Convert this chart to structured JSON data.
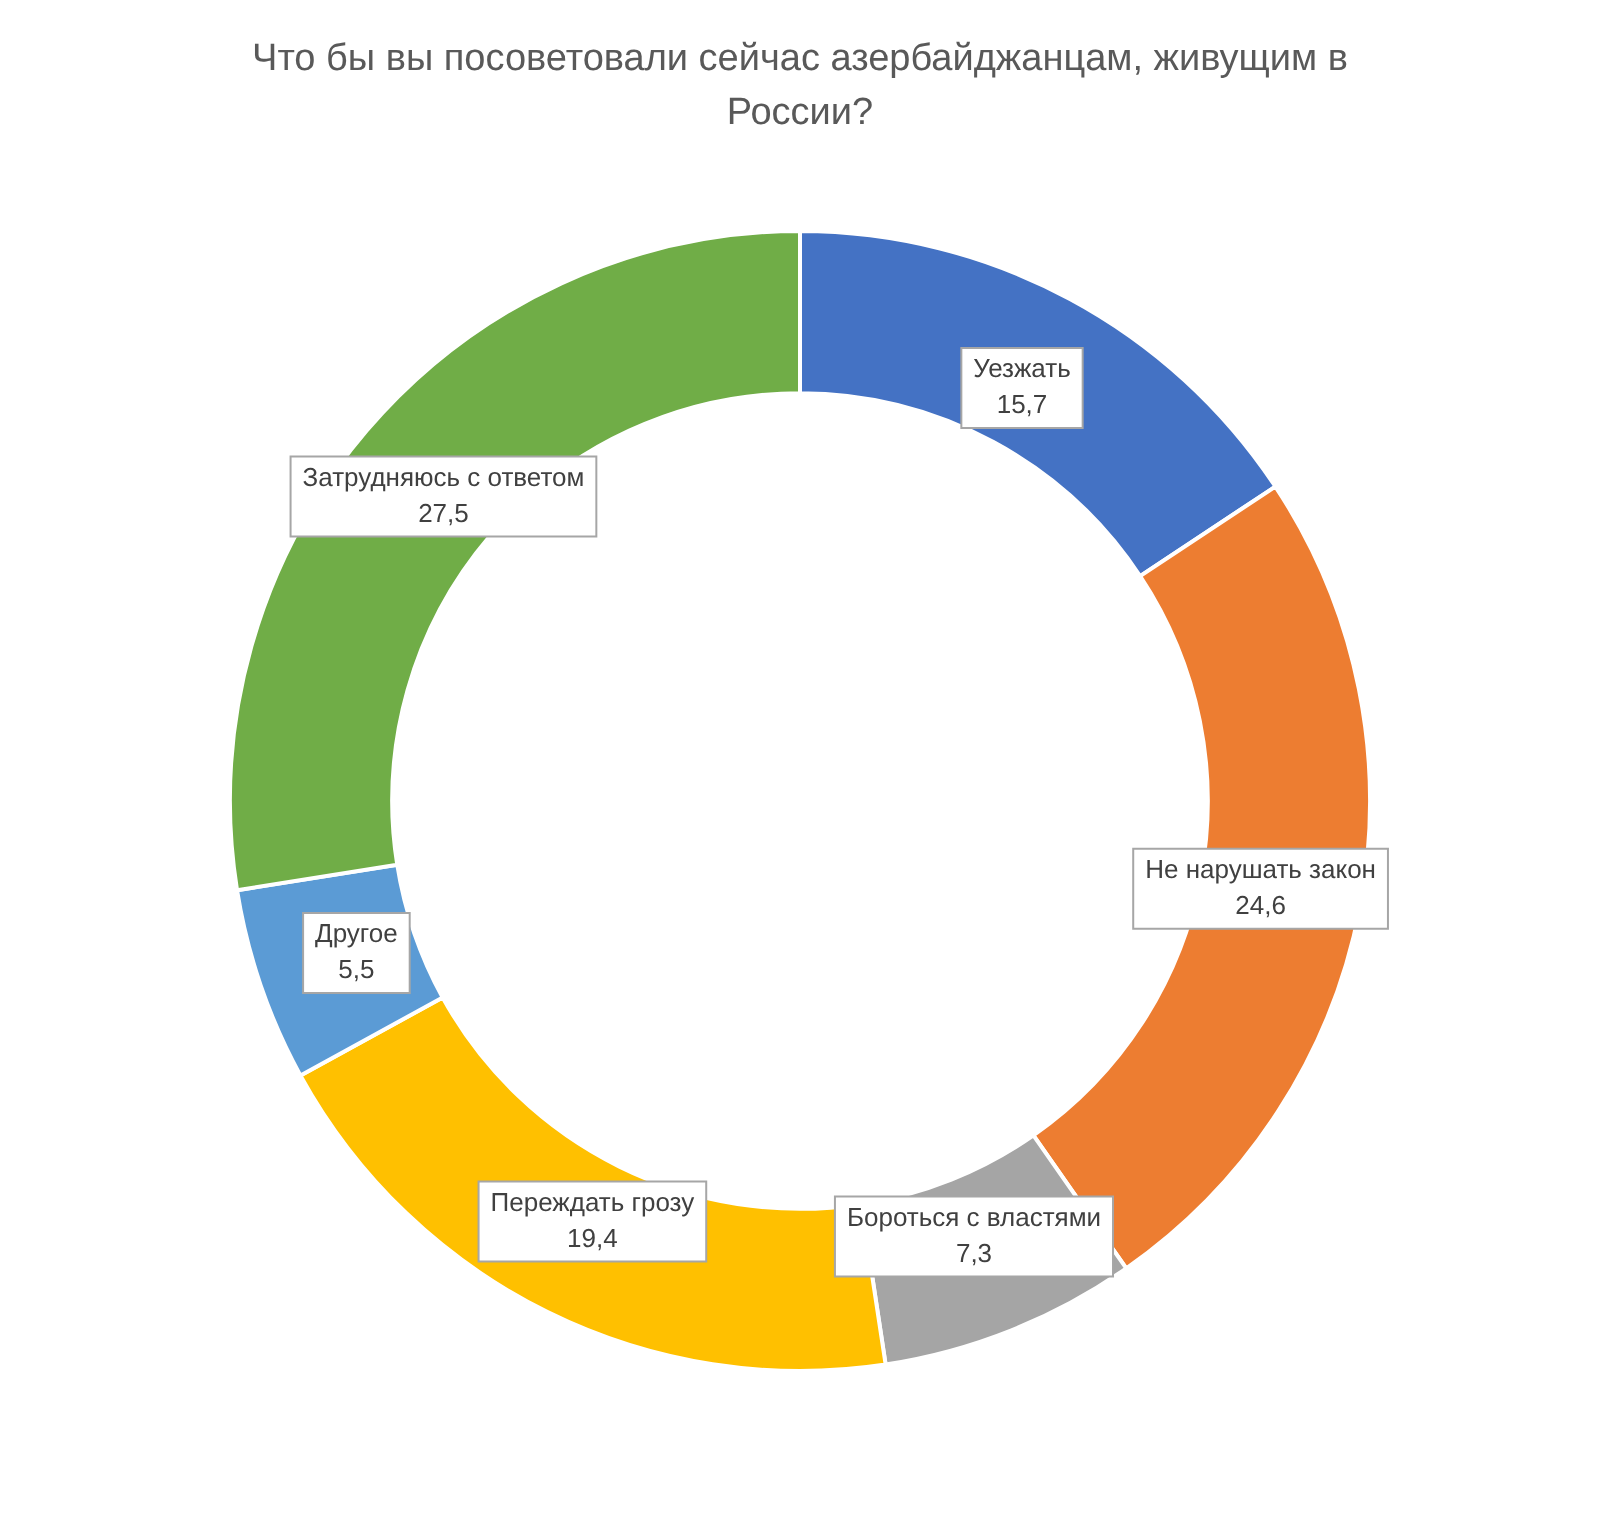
{
  "chart_data": {
    "type": "donut",
    "title": "Что бы вы посоветовали сейчас азербайджанцам, живущим в России?",
    "categories": [
      "Уезжать",
      "Не нарушать закон",
      "Бороться с властями",
      "Переждать грозу",
      "Другое",
      "Затрудняюсь с ответом"
    ],
    "values": [
      15.7,
      24.6,
      7.3,
      19.4,
      5.5,
      27.5
    ],
    "value_labels": [
      "15,7",
      "24,6",
      "7,3",
      "19,4",
      "5,5",
      "27,5"
    ],
    "colors": [
      "#4472c4",
      "#ed7d31",
      "#a5a5a5",
      "#ffc000",
      "#5b9bd5",
      "#70ad47"
    ],
    "legend": false
  }
}
